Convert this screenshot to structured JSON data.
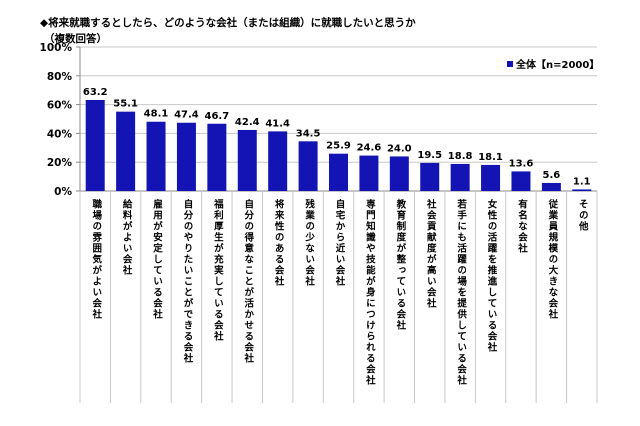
{
  "chart_data": {
    "type": "bar",
    "title": "◆将来就職するとしたら、どのような会社（または組織）に就職したいと思うか",
    "subtitle": "（複数回答）",
    "categories": [
      "職場の雰囲気がよい会社",
      "給料がよい会社",
      "雇用が安定している会社",
      "自分のやりたいことができる会社",
      "福利厚生が充実している会社",
      "自分の得意なことが活かせる会社",
      "将来性のある会社",
      "残業の少ない会社",
      "自宅から近い会社",
      "専門知識や技能が身につけられる会社",
      "教育制度が整っている会社",
      "社会貢献度が高い会社",
      "若手にも活躍の場を提供している会社",
      "女性の活躍を推進している会社",
      "有名な会社",
      "従業員規模の大きな会社",
      "その他"
    ],
    "series": [
      {
        "name": "全体【n=2000】",
        "values": [
          63.2,
          55.1,
          48.1,
          47.4,
          46.7,
          42.4,
          41.4,
          34.5,
          25.9,
          24.6,
          24.0,
          19.5,
          18.8,
          18.1,
          13.6,
          5.6,
          1.1
        ]
      }
    ],
    "value_labels": [
      "63.2",
      "55.1",
      "48.1",
      "47.4",
      "46.7",
      "42.4",
      "41.4",
      "34.5",
      "25.9",
      "24.6",
      "24.0",
      "19.5",
      "18.8",
      "18.1",
      "13.6",
      "5.6",
      "1.1"
    ],
    "yticks": [
      "0%",
      "20%",
      "40%",
      "60%",
      "80%",
      "100%"
    ],
    "ylim": [
      0,
      100
    ],
    "xlabel": "",
    "ylabel": "",
    "grid": true,
    "legend_position": "top-right",
    "colors": {
      "bar": "#1414b4",
      "grid": "#c8c8c8"
    }
  }
}
